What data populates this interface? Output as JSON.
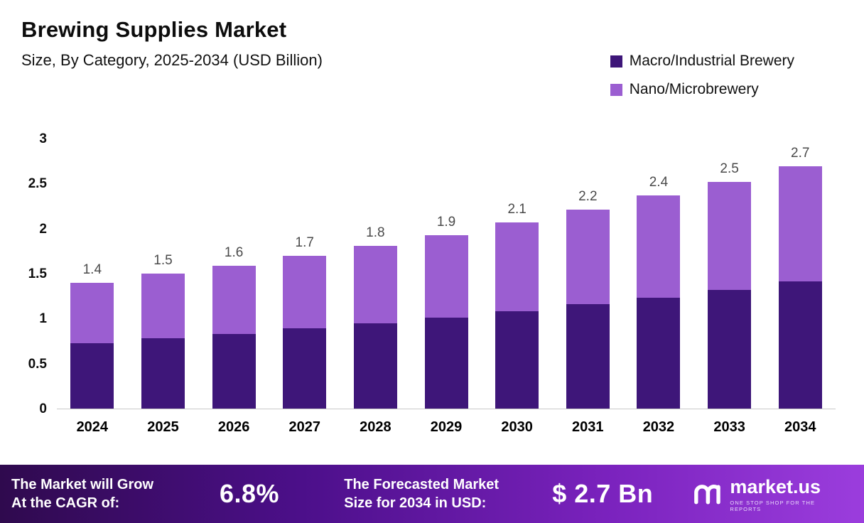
{
  "header": {
    "title": "Brewing Supplies Market",
    "subtitle": "Size, By Category, 2025-2034 (USD Billion)"
  },
  "legend": [
    {
      "label": "Macro/Industrial Brewery",
      "color": "#3e1679"
    },
    {
      "label": "Nano/Microbrewery",
      "color": "#9b5ed1"
    }
  ],
  "chart_data": {
    "type": "bar",
    "stacked": true,
    "title": "Brewing Supplies Market Size, By Category, 2025-2034 (USD Billion)",
    "categories": [
      "2024",
      "2025",
      "2026",
      "2027",
      "2028",
      "2029",
      "2030",
      "2031",
      "2032",
      "2033",
      "2034"
    ],
    "series": [
      {
        "name": "Macro/Industrial Brewery",
        "color": "#3e1679",
        "values": [
          0.73,
          0.78,
          0.83,
          0.89,
          0.95,
          1.01,
          1.08,
          1.16,
          1.23,
          1.32,
          1.41
        ]
      },
      {
        "name": "Nano/Microbrewery",
        "color": "#9b5ed1",
        "values": [
          0.67,
          0.72,
          0.76,
          0.81,
          0.86,
          0.92,
          0.99,
          1.05,
          1.14,
          1.2,
          1.28
        ]
      }
    ],
    "totals": [
      "1.4",
      "1.5",
      "1.6",
      "1.7",
      "1.8",
      "1.9",
      "2.1",
      "2.2",
      "2.4",
      "2.5",
      "2.7"
    ],
    "xlabel": "",
    "ylabel": "",
    "ylim": [
      0,
      3
    ],
    "yticks": [
      "0",
      "0.5",
      "1",
      "1.5",
      "2",
      "2.5",
      "3"
    ],
    "grid": false,
    "legend_position": "top-right"
  },
  "footer": {
    "cagr_label_line1": "The Market will Grow",
    "cagr_label_line2": "At the CAGR of:",
    "cagr_value": "6.8%",
    "forecast_label_line1": "The Forecasted Market",
    "forecast_label_line2": "Size for 2034 in USD:",
    "forecast_value": "$ 2.7 Bn",
    "brand": "market.us",
    "brand_tagline": "ONE STOP SHOP FOR THE REPORTS"
  }
}
